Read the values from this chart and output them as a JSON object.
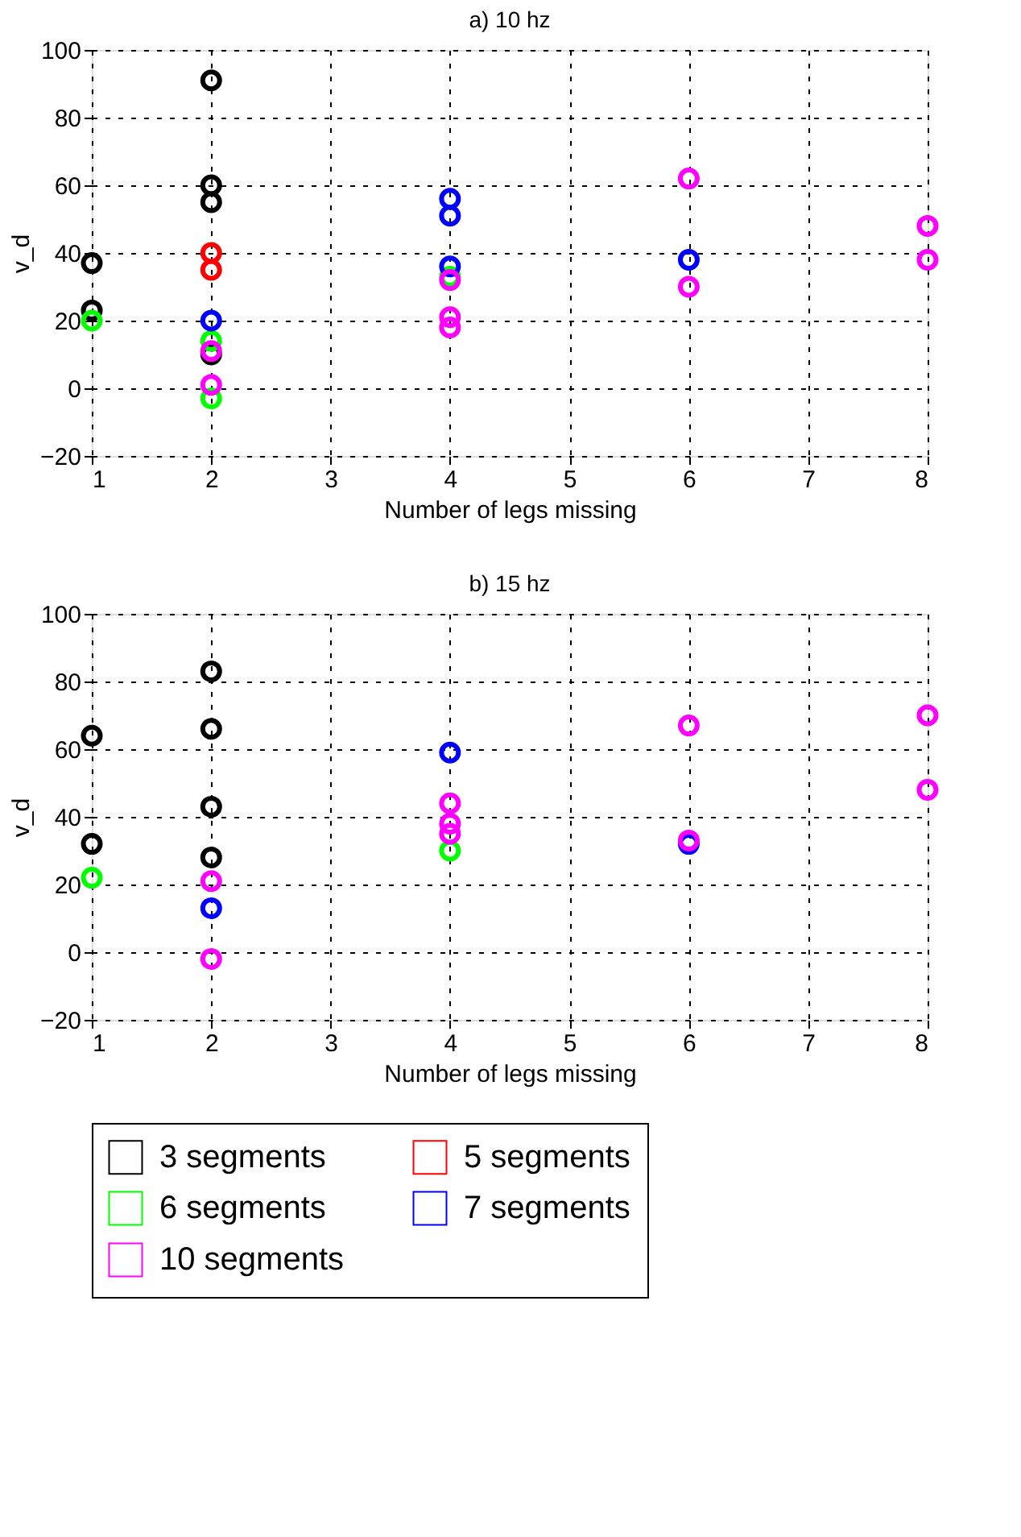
{
  "chart_data": [
    {
      "type": "scatter",
      "title": "a) 10 hz",
      "xlabel": "Number of legs missing",
      "ylabel": "v_d",
      "xlim": [
        1,
        8
      ],
      "xticks": [
        1,
        2,
        3,
        4,
        5,
        6,
        7,
        8
      ],
      "ylim": [
        -20,
        100
      ],
      "yticks": [
        -20,
        0,
        20,
        40,
        60,
        80,
        100
      ],
      "grid": true,
      "marker": "circle",
      "legend": "bottom",
      "series": [
        {
          "name": "3 segments",
          "color": "#000000",
          "x": [
            1,
            1,
            2,
            2,
            2,
            2
          ],
          "values": [
            37,
            23,
            91,
            60,
            55,
            10
          ]
        },
        {
          "name": "5 segments",
          "color": "#ff0000",
          "x": [
            2,
            2
          ],
          "values": [
            40,
            35
          ]
        },
        {
          "name": "6 segments",
          "color": "#00ff00",
          "x": [
            1,
            2,
            2,
            4
          ],
          "values": [
            20,
            14,
            -3,
            33
          ]
        },
        {
          "name": "7 segments",
          "color": "#0000ff",
          "x": [
            2,
            4,
            4,
            4,
            6
          ],
          "values": [
            20,
            56,
            51,
            36,
            38
          ]
        },
        {
          "name": "10 segments",
          "color": "#ff00ff",
          "x": [
            2,
            2,
            4,
            4,
            4,
            6,
            6,
            8,
            8
          ],
          "values": [
            11,
            1,
            32,
            21,
            18,
            62,
            30,
            48,
            38
          ]
        }
      ]
    },
    {
      "type": "scatter",
      "title": "b) 15 hz",
      "xlabel": "Number of legs missing",
      "ylabel": "v_d",
      "xlim": [
        1,
        8
      ],
      "xticks": [
        1,
        2,
        3,
        4,
        5,
        6,
        7,
        8
      ],
      "ylim": [
        -20,
        100
      ],
      "yticks": [
        -20,
        0,
        20,
        40,
        60,
        80,
        100
      ],
      "grid": true,
      "marker": "circle",
      "legend": "bottom",
      "series": [
        {
          "name": "3 segments",
          "color": "#000000",
          "x": [
            1,
            1,
            2,
            2,
            2,
            2
          ],
          "values": [
            64,
            32,
            83,
            66,
            43,
            28
          ]
        },
        {
          "name": "6 segments",
          "color": "#00ff00",
          "x": [
            1,
            4
          ],
          "values": [
            22,
            30
          ]
        },
        {
          "name": "7 segments",
          "color": "#0000ff",
          "x": [
            2,
            4,
            6
          ],
          "values": [
            13,
            59,
            32
          ]
        },
        {
          "name": "10 segments",
          "color": "#ff00ff",
          "x": [
            2,
            2,
            4,
            4,
            4,
            6,
            6,
            8,
            8
          ],
          "values": [
            21,
            -2,
            44,
            38,
            35,
            67,
            33,
            70,
            48
          ]
        }
      ]
    }
  ]
}
